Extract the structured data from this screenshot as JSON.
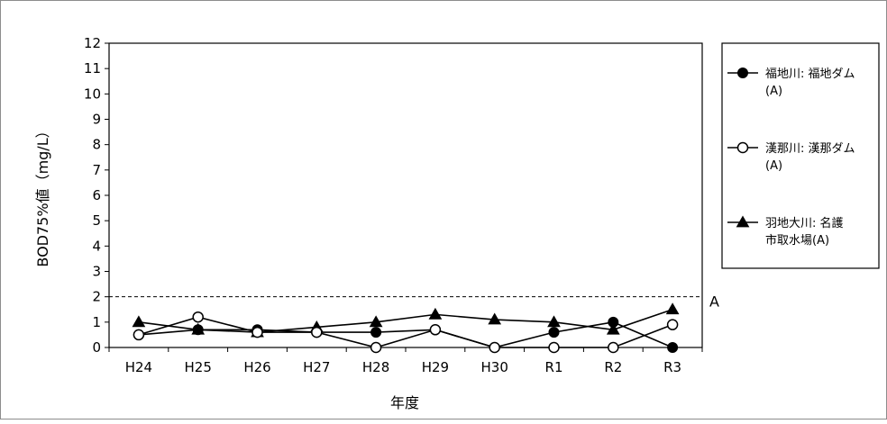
{
  "chart_data": {
    "type": "line",
    "title": "",
    "xlabel": "年度",
    "ylabel": "BOD75%値（mg/L）",
    "categories": [
      "H24",
      "H25",
      "H26",
      "H27",
      "H28",
      "H29",
      "H30",
      "R1",
      "R2",
      "R3"
    ],
    "ylim": [
      0,
      12
    ],
    "yticks": [
      "0",
      "1",
      "2",
      "3",
      "4",
      "5",
      "6",
      "7",
      "8",
      "9",
      "10",
      "11",
      "12"
    ],
    "grid": false,
    "legend_position": "right",
    "series": [
      {
        "name_line1": "福地川: 福地ダム",
        "name_line2": "(A)",
        "marker": "filled-circle",
        "values": [
          0.5,
          0.7,
          0.7,
          0.6,
          0.6,
          0.7,
          0.0,
          0.6,
          1.0,
          0.0
        ]
      },
      {
        "name_line1": "漢那川: 漢那ダム",
        "name_line2": "(A)",
        "marker": "open-circle",
        "values": [
          0.5,
          1.2,
          0.6,
          0.6,
          0.0,
          0.7,
          0.0,
          0.0,
          0.0,
          0.9
        ]
      },
      {
        "name_line1": "羽地大川: 名護",
        "name_line2": "市取水場(A)",
        "marker": "filled-triangle",
        "values": [
          1.0,
          0.7,
          0.6,
          0.8,
          1.0,
          1.3,
          1.1,
          1.0,
          0.7,
          1.5
        ]
      }
    ],
    "reference_line": {
      "value": 2,
      "label": "A",
      "style": "dashed"
    }
  }
}
